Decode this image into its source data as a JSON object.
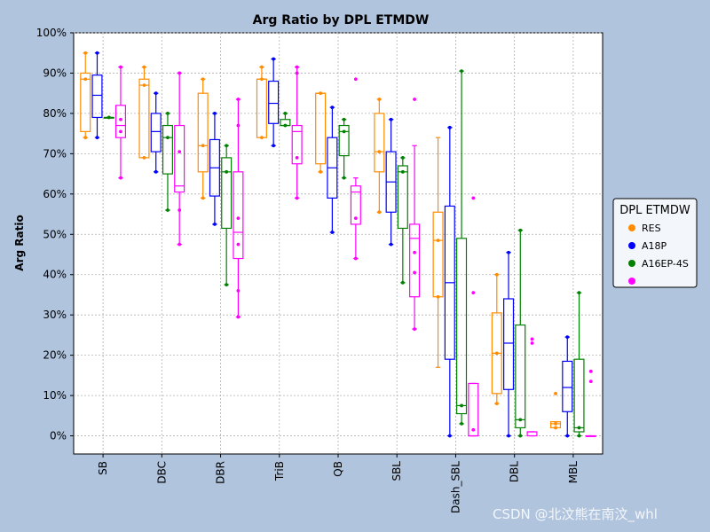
{
  "chart_data": {
    "type": "box",
    "title": "Arg Ratio by DPL ETMDW",
    "xlabel": "",
    "ylabel": "Arg Ratio",
    "ylim": [
      -4.5,
      100
    ],
    "yticks": [
      0,
      10,
      20,
      30,
      40,
      50,
      60,
      70,
      80,
      90,
      100
    ],
    "ytick_labels": [
      "0%",
      "10%",
      "20%",
      "30%",
      "40%",
      "50%",
      "60%",
      "70%",
      "80%",
      "90%",
      "100%"
    ],
    "categories": [
      "SB",
      "DBC",
      "DBR",
      "TriB",
      "QB",
      "SBL",
      "Dash_SBL",
      "DBL",
      "MBL"
    ],
    "grid": true,
    "legend": {
      "title": "DPL ETMDW",
      "placement": "right-outside"
    },
    "series": [
      {
        "name": "RES",
        "color": "#ff8c00",
        "boxes": [
          {
            "min": 74,
            "q1": 75.5,
            "median": 88.5,
            "q3": 90,
            "max": 95,
            "points": [
              74,
              88.5,
              95
            ]
          },
          {
            "min": 69,
            "q1": 69,
            "median": 87,
            "q3": 88.5,
            "max": 91.5,
            "points": [
              69,
              87,
              91.5
            ]
          },
          {
            "min": 59,
            "q1": 65.5,
            "median": 72,
            "q3": 85,
            "max": 88.5,
            "points": [
              59,
              72,
              88.5
            ]
          },
          {
            "min": 74,
            "q1": 74,
            "median": 88.5,
            "q3": 88.5,
            "max": 91.5,
            "points": [
              74,
              88.5,
              91.5
            ]
          },
          {
            "min": 65.5,
            "q1": 67.5,
            "median": 85,
            "q3": 85,
            "max": 85,
            "points": [
              65.5,
              85
            ]
          },
          {
            "min": 55.5,
            "q1": 65.5,
            "median": 70.5,
            "q3": 80,
            "max": 83.5,
            "points": [
              55.5,
              70.5,
              83.5
            ]
          },
          {
            "min": 17,
            "q1": 34.5,
            "median": 48.5,
            "q3": 55.5,
            "max": 74,
            "points": [
              34.5,
              48.5
            ]
          },
          {
            "min": 8,
            "q1": 10.5,
            "median": 20.5,
            "q3": 30.5,
            "max": 40,
            "points": [
              8,
              20.5,
              40
            ]
          },
          {
            "min": 2,
            "q1": 2,
            "median": 3,
            "q3": 3.5,
            "max": 3.5,
            "points": [
              10.5,
              2,
              3
            ]
          }
        ]
      },
      {
        "name": "A18P",
        "color": "#0000ff",
        "boxes": [
          {
            "min": 74,
            "q1": 79,
            "median": 84.5,
            "q3": 89.5,
            "max": 95,
            "points": [
              74,
              95
            ]
          },
          {
            "min": 65.5,
            "q1": 70.5,
            "median": 75.5,
            "q3": 80,
            "max": 85,
            "points": [
              65.5,
              85
            ]
          },
          {
            "min": 52.5,
            "q1": 59.5,
            "median": 66.5,
            "q3": 73.5,
            "max": 80,
            "points": [
              52.5,
              80
            ]
          },
          {
            "min": 72,
            "q1": 77.5,
            "median": 82.5,
            "q3": 88,
            "max": 93.5,
            "points": [
              72,
              93.5
            ]
          },
          {
            "min": 50.5,
            "q1": 59,
            "median": 66.5,
            "q3": 74,
            "max": 81.5,
            "points": [
              50.5,
              81.5
            ]
          },
          {
            "min": 47.5,
            "q1": 55.5,
            "median": 63,
            "q3": 70.5,
            "max": 78.5,
            "points": [
              47.5,
              78.5
            ]
          },
          {
            "min": 0,
            "q1": 19,
            "median": 38,
            "q3": 57,
            "max": 76.5,
            "points": [
              0,
              76.5
            ]
          },
          {
            "min": 0,
            "q1": 11.5,
            "median": 23,
            "q3": 34,
            "max": 45.5,
            "points": [
              0,
              45.5
            ]
          },
          {
            "min": 0,
            "q1": 6,
            "median": 12,
            "q3": 18.5,
            "max": 24.5,
            "points": [
              0,
              24.5
            ]
          }
        ]
      },
      {
        "name": "A16EP-4S",
        "color": "#008000",
        "boxes": [
          {
            "min": 79,
            "q1": 79,
            "median": 79,
            "q3": 79,
            "max": 79,
            "points": [
              79
            ]
          },
          {
            "min": 56,
            "q1": 65,
            "median": 74,
            "q3": 77,
            "max": 80,
            "points": [
              56,
              74,
              80
            ]
          },
          {
            "min": 37.5,
            "q1": 51.5,
            "median": 65.5,
            "q3": 69,
            "max": 72,
            "points": [
              37.5,
              65.5,
              72
            ]
          },
          {
            "min": 77,
            "q1": 77,
            "median": 77,
            "q3": 78.5,
            "max": 80,
            "points": [
              77,
              80
            ]
          },
          {
            "min": 64,
            "q1": 69.5,
            "median": 75.5,
            "q3": 77,
            "max": 78.5,
            "points": [
              64,
              75.5,
              78.5
            ]
          },
          {
            "min": 38,
            "q1": 51.5,
            "median": 65.5,
            "q3": 67,
            "max": 69,
            "points": [
              38,
              65.5,
              69
            ]
          },
          {
            "min": 3,
            "q1": 5.5,
            "median": 7.5,
            "q3": 49,
            "max": 90.5,
            "points": [
              3,
              7.5,
              90.5
            ]
          },
          {
            "min": 0,
            "q1": 2,
            "median": 4,
            "q3": 27.5,
            "max": 51,
            "points": [
              0,
              4,
              51
            ]
          },
          {
            "min": 0,
            "q1": 1,
            "median": 2,
            "q3": 19,
            "max": 35.5,
            "points": [
              0,
              2,
              35.5
            ]
          }
        ]
      },
      {
        "name": "",
        "color": "#ff00ff",
        "boxes": [
          {
            "min": 64,
            "q1": 74,
            "median": 77,
            "q3": 82,
            "max": 91.5,
            "points": [
              64,
              75.5,
              78.5,
              91.5
            ]
          },
          {
            "min": 47.5,
            "q1": 60.5,
            "median": 62,
            "q3": 77,
            "max": 90,
            "points": [
              47.5,
              56,
              70.5,
              90
            ]
          },
          {
            "min": 29.5,
            "q1": 44,
            "median": 50.5,
            "q3": 65.5,
            "max": 83.5,
            "points": [
              29.5,
              36,
              47.5,
              54,
              77,
              83.5
            ]
          },
          {
            "min": 59,
            "q1": 67.5,
            "median": 75.5,
            "q3": 77,
            "max": 91.5,
            "points": [
              59,
              69,
              90,
              91.5
            ]
          },
          {
            "min": 44,
            "q1": 52.5,
            "median": 60.5,
            "q3": 62,
            "max": 64,
            "points": [
              44,
              54,
              88.5
            ]
          },
          {
            "min": 26.5,
            "q1": 34.5,
            "median": 49,
            "q3": 52.5,
            "max": 72,
            "points": [
              26.5,
              40.5,
              45.5,
              83.5
            ]
          },
          {
            "min": 0,
            "q1": 0,
            "median": 0,
            "q3": 13,
            "max": 13,
            "points": [
              1.5,
              35.5,
              59
            ]
          },
          {
            "min": 0,
            "q1": 0,
            "median": 1,
            "q3": 1,
            "max": 1,
            "points": [
              23,
              24
            ]
          },
          {
            "min": 0,
            "q1": 0,
            "median": 0,
            "q3": 0,
            "max": 0,
            "points": [
              13.5,
              16
            ]
          }
        ]
      }
    ]
  },
  "legend_items": [
    {
      "label": "RES",
      "color": "#ff8c00"
    },
    {
      "label": "A18P",
      "color": "#0000ff"
    },
    {
      "label": "A16EP-4S",
      "color": "#008000"
    },
    {
      "label": "",
      "color": "#ff00ff"
    }
  ],
  "watermark": "CSDN @北汶熊在南汶_whl"
}
